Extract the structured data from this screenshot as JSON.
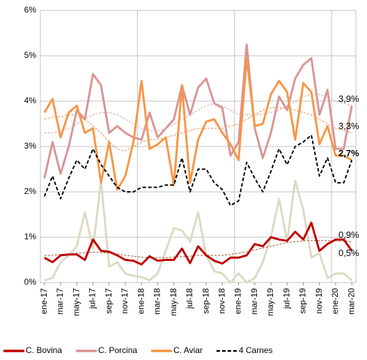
{
  "chart_data": {
    "type": "line",
    "categories": [
      "ene-17",
      null,
      "mar-17",
      null,
      "may-17",
      null,
      "jul-17",
      null,
      "sep-17",
      null,
      "nov-17",
      null,
      "ene-18",
      null,
      "mar-18",
      null,
      "may-18",
      null,
      "jul-18",
      null,
      "sep-18",
      null,
      "nov-18",
      null,
      "ene-19",
      null,
      "mar-19",
      null,
      "may-19",
      null,
      "jul-19",
      null,
      "sep-19",
      null,
      "nov-19",
      null,
      "ene-20",
      null,
      "mar-20"
    ],
    "ylim": [
      0,
      6
    ],
    "yticks": [
      {
        "value": 0,
        "label": "0%"
      },
      {
        "value": 1,
        "label": "1%"
      },
      {
        "value": 2,
        "label": "2%"
      },
      {
        "value": 3,
        "label": "3%"
      },
      {
        "value": 4,
        "label": "4%"
      },
      {
        "value": 5,
        "label": "5%"
      },
      {
        "value": 6,
        "label": "6%"
      }
    ],
    "grid": true,
    "legend": "bottom",
    "series": [
      {
        "color": "#ddd9c3",
        "width": 3,
        "values": [
          0.05,
          0.1,
          0.45,
          0.6,
          0.8,
          1.55,
          0.75,
          2.25,
          0.35,
          0.45,
          0.2,
          0.15,
          0.12,
          0.05,
          0.2,
          0.7,
          1.2,
          1.15,
          0.9,
          1.55,
          0.6,
          0.25,
          0.2,
          0.0,
          0.2,
          0.0,
          0.1,
          0.45,
          1.0,
          1.85,
          0.9,
          2.25,
          1.6,
          0.55,
          0.65,
          0.1,
          0.2,
          0.2,
          0.05
        ]
      },
      {
        "color": "#d9a0a0",
        "width": 1,
        "dash": "3,2",
        "values": [
          3.3,
          3.3,
          3.35,
          3.4,
          3.5,
          3.6,
          3.7,
          3.75,
          3.75,
          3.7,
          3.6,
          3.5,
          3.4,
          3.35,
          3.35,
          3.4,
          3.5,
          3.6,
          3.7,
          3.8,
          3.9,
          3.95,
          3.9,
          3.8,
          3.7,
          3.7,
          3.7,
          3.7,
          3.75,
          3.8,
          3.9,
          4.0,
          4.1,
          4.15,
          4.15,
          4.1,
          4.0,
          3.95,
          3.9
        ]
      },
      {
        "color": "#e8894a",
        "width": 1,
        "dash": "3,2",
        "values": [
          3.6,
          3.65,
          3.65,
          3.7,
          3.7,
          3.6,
          3.45,
          3.3,
          3.1,
          2.95,
          2.9,
          3.0,
          3.1,
          3.15,
          3.15,
          3.2,
          3.25,
          3.3,
          3.35,
          3.4,
          3.4,
          3.4,
          3.4,
          3.45,
          3.5,
          3.6,
          3.7,
          3.8,
          3.85,
          3.85,
          3.85,
          3.8,
          3.75,
          3.7,
          3.6,
          3.5,
          3.4,
          3.35,
          3.3
        ]
      },
      {
        "color": "#a0522d",
        "width": 1,
        "dash": "3,2",
        "values": [
          0.6,
          0.6,
          0.62,
          0.63,
          0.65,
          0.66,
          0.67,
          0.66,
          0.65,
          0.63,
          0.6,
          0.58,
          0.56,
          0.55,
          0.55,
          0.55,
          0.56,
          0.57,
          0.58,
          0.6,
          0.6,
          0.6,
          0.6,
          0.62,
          0.65,
          0.68,
          0.72,
          0.76,
          0.8,
          0.84,
          0.88,
          0.9,
          0.92,
          0.93,
          0.93,
          0.93,
          0.92,
          0.92,
          0.9
        ]
      },
      {
        "name": "C. Bovina",
        "color": "#c00000",
        "width": 3,
        "values": [
          0.55,
          0.45,
          0.6,
          0.62,
          0.62,
          0.5,
          0.95,
          0.7,
          0.68,
          0.6,
          0.5,
          0.48,
          0.4,
          0.58,
          0.48,
          0.5,
          0.5,
          0.75,
          0.43,
          0.8,
          0.6,
          0.48,
          0.42,
          0.55,
          0.55,
          0.6,
          0.85,
          0.8,
          1.0,
          0.95,
          0.92,
          1.12,
          0.95,
          1.32,
          0.7,
          0.85,
          0.95,
          0.95,
          0.7
        ]
      },
      {
        "name": "C. Porcina",
        "color": "#d99594",
        "width": 3,
        "values": [
          2.3,
          3.1,
          2.4,
          3.0,
          3.8,
          3.6,
          4.6,
          4.35,
          3.3,
          3.45,
          3.3,
          3.2,
          3.15,
          3.75,
          3.2,
          3.4,
          3.6,
          4.35,
          3.7,
          4.3,
          4.5,
          3.95,
          3.85,
          2.8,
          3.1,
          5.25,
          3.4,
          2.75,
          3.3,
          4.1,
          3.8,
          4.5,
          4.8,
          4.95,
          3.7,
          4.25,
          2.95,
          2.95,
          3.9
        ]
      },
      {
        "name": "C. Aviar",
        "color": "#f79646",
        "width": 3,
        "values": [
          3.75,
          4.05,
          3.2,
          3.75,
          3.9,
          3.3,
          3.4,
          2.2,
          3.1,
          2.05,
          2.35,
          3.1,
          4.45,
          2.95,
          3.05,
          3.2,
          2.15,
          4.35,
          2.2,
          3.15,
          3.55,
          3.6,
          3.3,
          3.05,
          2.7,
          4.95,
          3.45,
          3.5,
          4.15,
          4.45,
          4.2,
          3.15,
          4.4,
          4.2,
          3.05,
          3.45,
          2.8,
          2.8,
          2.7
        ]
      },
      {
        "name": "4 Carnes",
        "color": "#000000",
        "width": 2,
        "dash": "5,3",
        "values": [
          1.9,
          2.35,
          1.85,
          2.3,
          2.7,
          2.5,
          2.95,
          2.6,
          2.35,
          2.1,
          2.0,
          2.0,
          2.1,
          2.1,
          2.1,
          2.15,
          2.15,
          2.75,
          2.0,
          2.5,
          2.5,
          2.2,
          2.05,
          1.7,
          1.8,
          2.65,
          2.3,
          2.0,
          2.45,
          2.95,
          2.6,
          3.0,
          3.1,
          3.25,
          2.35,
          2.75,
          2.2,
          2.2,
          2.7
        ]
      }
    ],
    "annotations": [
      {
        "label": "3,9%",
        "value": 3.9
      },
      {
        "label": "3,3%",
        "value": 3.3
      },
      {
        "label": "2,7%",
        "value": 2.7,
        "bold": true
      },
      {
        "label": "0,9%",
        "value": 0.9
      },
      {
        "label": "0,5%",
        "value": 0.5
      }
    ]
  }
}
